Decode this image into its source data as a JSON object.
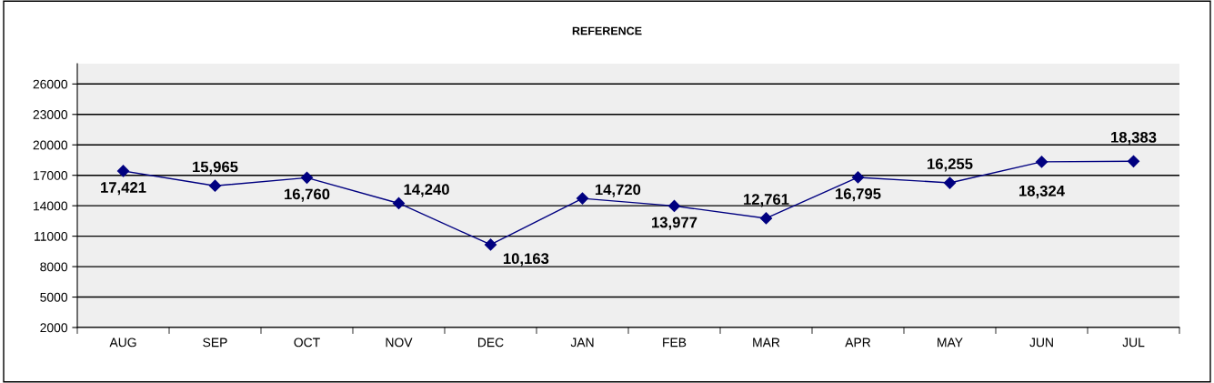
{
  "chart_data": {
    "type": "line",
    "title": "REFERENCE",
    "categories": [
      "AUG",
      "SEP",
      "OCT",
      "NOV",
      "DEC",
      "JAN",
      "FEB",
      "MAR",
      "APR",
      "MAY",
      "JUN",
      "JUL"
    ],
    "series": [
      {
        "color": "#000080",
        "values": [
          17421,
          15965,
          16760,
          14240,
          10163,
          14720,
          13977,
          12761,
          16795,
          16255,
          18324,
          18383
        ]
      }
    ],
    "ylim": [
      2000,
      28000
    ],
    "yticks": [
      2000,
      5000,
      8000,
      11000,
      14000,
      17000,
      20000,
      23000,
      26000
    ],
    "value_labels": [
      "17,421",
      "15,965",
      "16,760",
      "14,240",
      "10,163",
      "14,720",
      "13,977",
      "12,761",
      "16,795",
      "16,255",
      "18,324",
      "18,383"
    ],
    "grid": "y",
    "marker": "diamond",
    "line_style": "solid",
    "legend": false
  }
}
